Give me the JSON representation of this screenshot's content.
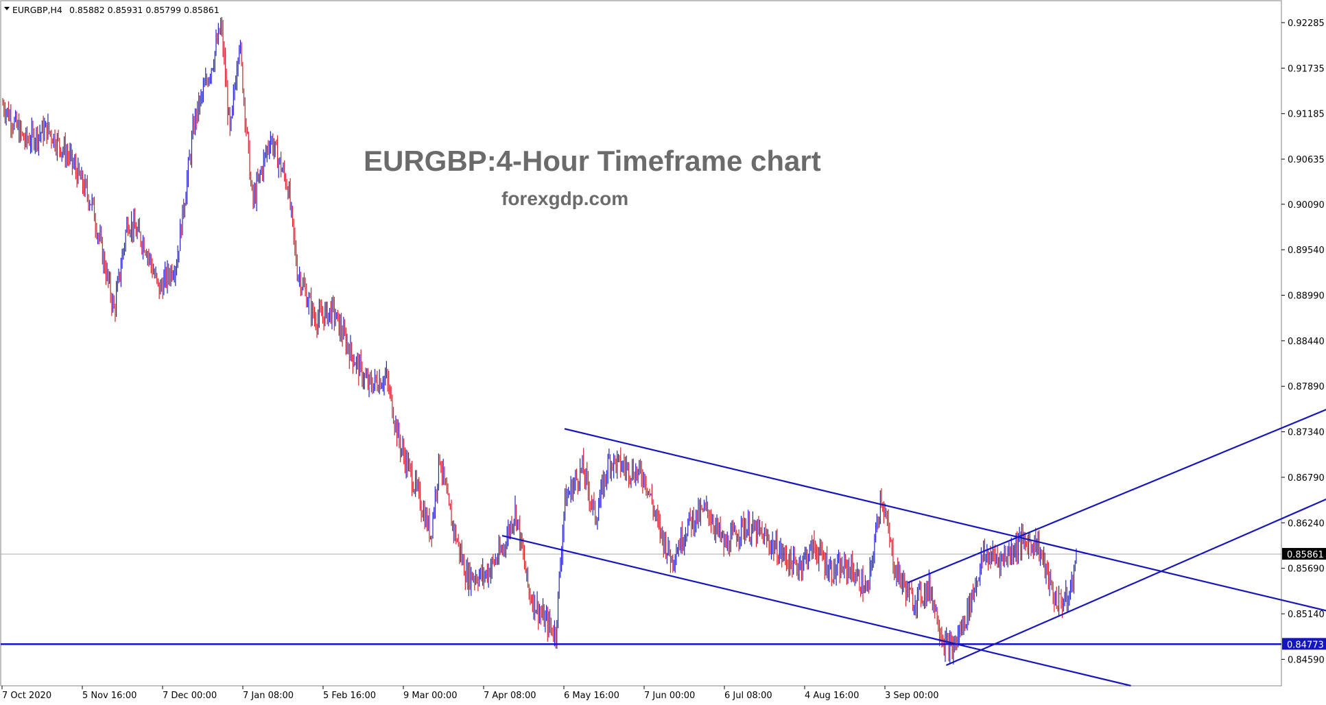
{
  "header": {
    "symbol": "EURGBP,H4",
    "ohlc": "0.85882 0.85931 0.85799 0.85861"
  },
  "watermark": {
    "title": "EURGBP:4-Hour Timeframe chart",
    "site": "forexgdp.com"
  },
  "chart_data": {
    "type": "candlestick",
    "symbol": "EURGBP",
    "timeframe": "H4",
    "current_price": 0.85861,
    "ylim": [
      0.8427,
      0.9255
    ],
    "y_ticks": [
      "0.92285",
      "0.91735",
      "0.91185",
      "0.90635",
      "0.90090",
      "0.89540",
      "0.88990",
      "0.88440",
      "0.87890",
      "0.87340",
      "0.86790",
      "0.86240",
      "0.85690",
      "0.85140",
      "0.84590"
    ],
    "x_ticks": [
      "7 Oct 2020",
      "5 Nov 16:00",
      "7 Dec 00:00",
      "7 Jan 08:00",
      "5 Feb 16:00",
      "9 Mar 00:00",
      "7 Apr 08:00",
      "6 May 16:00",
      "7 Jun 00:00",
      "6 Jul 08:00",
      "4 Aug 16:00",
      "3 Sep 00:00"
    ],
    "x_range": [
      0,
      1500
    ],
    "price_path": [
      [
        0,
        0.913
      ],
      [
        25,
        0.9085
      ],
      [
        50,
        0.91
      ],
      [
        75,
        0.9065
      ],
      [
        100,
        0.901
      ],
      [
        125,
        0.888
      ],
      [
        140,
        0.899
      ],
      [
        160,
        0.896
      ],
      [
        175,
        0.8905
      ],
      [
        195,
        0.894
      ],
      [
        215,
        0.911
      ],
      [
        235,
        0.918
      ],
      [
        245,
        0.9225
      ],
      [
        255,
        0.909
      ],
      [
        265,
        0.921
      ],
      [
        280,
        0.901
      ],
      [
        300,
        0.909
      ],
      [
        320,
        0.903
      ],
      [
        330,
        0.893
      ],
      [
        350,
        0.887
      ],
      [
        370,
        0.888
      ],
      [
        390,
        0.883
      ],
      [
        410,
        0.879
      ],
      [
        430,
        0.88
      ],
      [
        445,
        0.872
      ],
      [
        465,
        0.866
      ],
      [
        480,
        0.861
      ],
      [
        490,
        0.8705
      ],
      [
        500,
        0.864
      ],
      [
        520,
        0.856
      ],
      [
        540,
        0.856
      ],
      [
        560,
        0.859
      ],
      [
        575,
        0.864
      ],
      [
        590,
        0.854
      ],
      [
        605,
        0.851
      ],
      [
        620,
        0.849
      ],
      [
        630,
        0.865
      ],
      [
        650,
        0.869
      ],
      [
        665,
        0.863
      ],
      [
        680,
        0.87
      ],
      [
        700,
        0.869
      ],
      [
        720,
        0.868
      ],
      [
        735,
        0.862
      ],
      [
        750,
        0.858
      ],
      [
        770,
        0.8625
      ],
      [
        790,
        0.864
      ],
      [
        810,
        0.8595
      ],
      [
        830,
        0.862
      ],
      [
        850,
        0.861
      ],
      [
        870,
        0.859
      ],
      [
        890,
        0.857
      ],
      [
        910,
        0.8595
      ],
      [
        930,
        0.8565
      ],
      [
        950,
        0.857
      ],
      [
        970,
        0.854
      ],
      [
        985,
        0.866
      ],
      [
        1000,
        0.857
      ],
      [
        1020,
        0.853
      ],
      [
        1040,
        0.8545
      ],
      [
        1055,
        0.848
      ],
      [
        1065,
        0.847
      ],
      [
        1080,
        0.851
      ],
      [
        1100,
        0.8585
      ],
      [
        1120,
        0.858
      ],
      [
        1140,
        0.86
      ],
      [
        1160,
        0.86
      ],
      [
        1180,
        0.853
      ],
      [
        1195,
        0.853
      ],
      [
        1205,
        0.8589
      ]
    ],
    "trendlines": [
      {
        "name": "descending-channel-upper",
        "x": [
          630,
          1500
        ],
        "y": [
          0.87376,
          0.85137
        ]
      },
      {
        "name": "descending-channel-lower",
        "x": [
          560,
          1265
        ],
        "y": [
          0.86085,
          0.84271
        ]
      },
      {
        "name": "ascending-channel-upper",
        "x": [
          1015,
          1510
        ],
        "y": [
          0.85517,
          0.87724
        ]
      },
      {
        "name": "ascending-channel-lower",
        "x": [
          1058,
          1510
        ],
        "y": [
          0.84519,
          0.86647
        ]
      }
    ],
    "horizontal_levels": [
      {
        "name": "support-level",
        "y": 0.84773,
        "label": "0.84773"
      }
    ],
    "colors": {
      "bull_candle": "#2020c8",
      "bear_candle": "#d0202a",
      "trendline": "#1515c0",
      "support_label_bg": "#1515c0",
      "price_label_bg": "#000000",
      "watermark_text": "#6b6b6b"
    },
    "grid": false
  }
}
